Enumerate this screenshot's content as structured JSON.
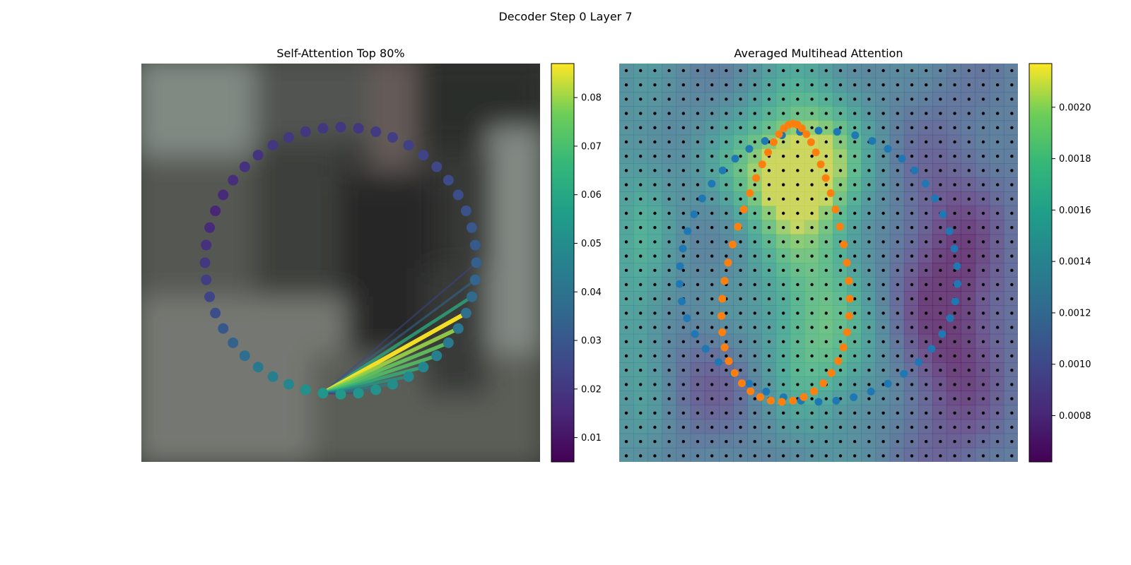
{
  "figure": {
    "title": "Decoder Step 0 Layer 7"
  },
  "chart_data": [
    {
      "type": "scatter",
      "title": "Self-Attention Top 80%",
      "colorbar": {
        "min": 0.005,
        "max": 0.087,
        "ticks": [
          "0.01",
          "0.02",
          "0.03",
          "0.04",
          "0.05",
          "0.06",
          "0.07",
          "0.08"
        ],
        "colormap": "viridis"
      },
      "contour_points": {
        "count": 48,
        "attention_values": [
          0.02,
          0.02,
          0.021,
          0.022,
          0.023,
          0.024,
          0.025,
          0.026,
          0.027,
          0.028,
          0.03,
          0.031,
          0.033,
          0.035,
          0.037,
          0.039,
          0.041,
          0.043,
          0.045,
          0.047,
          0.049,
          0.05,
          0.052,
          0.053,
          0.054,
          0.053,
          0.051,
          0.048,
          0.045,
          0.042,
          0.038,
          0.034,
          0.03,
          0.027,
          0.024,
          0.022,
          0.02,
          0.018,
          0.016,
          0.015,
          0.016,
          0.017,
          0.018,
          0.019,
          0.02,
          0.02,
          0.02,
          0.02
        ]
      },
      "attention_lines": {
        "query_index": 25,
        "targets": [
          12,
          13,
          14,
          15,
          16,
          17,
          18,
          19,
          20,
          21,
          22,
          23,
          24
        ],
        "weights": [
          0.025,
          0.035,
          0.062,
          0.087,
          0.08,
          0.075,
          0.072,
          0.065,
          0.055,
          0.045,
          0.038,
          0.025,
          0.02
        ]
      }
    },
    {
      "type": "heatmap",
      "title": "Averaged Multihead Attention",
      "colorbar": {
        "min": 0.00062,
        "max": 0.00217,
        "ticks": [
          "0.0008",
          "0.0010",
          "0.0012",
          "0.0014",
          "0.0016",
          "0.0018",
          "0.0020"
        ],
        "colormap": "viridis"
      },
      "grid": {
        "rows": 28,
        "cols": 28
      },
      "series": [
        {
          "color": "#1f77b4",
          "shape": "large-circle"
        },
        {
          "color": "#ff7f0e",
          "shape": "s-curve"
        }
      ]
    }
  ]
}
